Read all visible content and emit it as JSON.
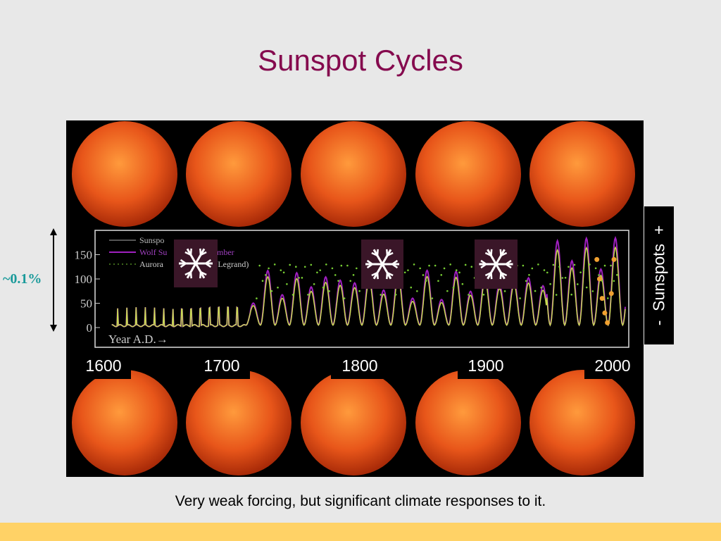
{
  "header": {
    "title": "Sunspot Cycles"
  },
  "figure": {
    "plot": {
      "yticks": [
        "0",
        "50",
        "100",
        "150"
      ],
      "xlabel": "Year A.D.→",
      "legend": [
        "Sunspo",
        "Wolf Su",
        "umber",
        "Aurora",
        "y/Legrand)"
      ]
    },
    "years": [
      "1600",
      "1700",
      "1800",
      "1900",
      "2000"
    ],
    "side_label": "-  Sunspots  +",
    "left_label": "~0.1%"
  },
  "caption": "Very weak forcing, but significant climate responses to it."
}
